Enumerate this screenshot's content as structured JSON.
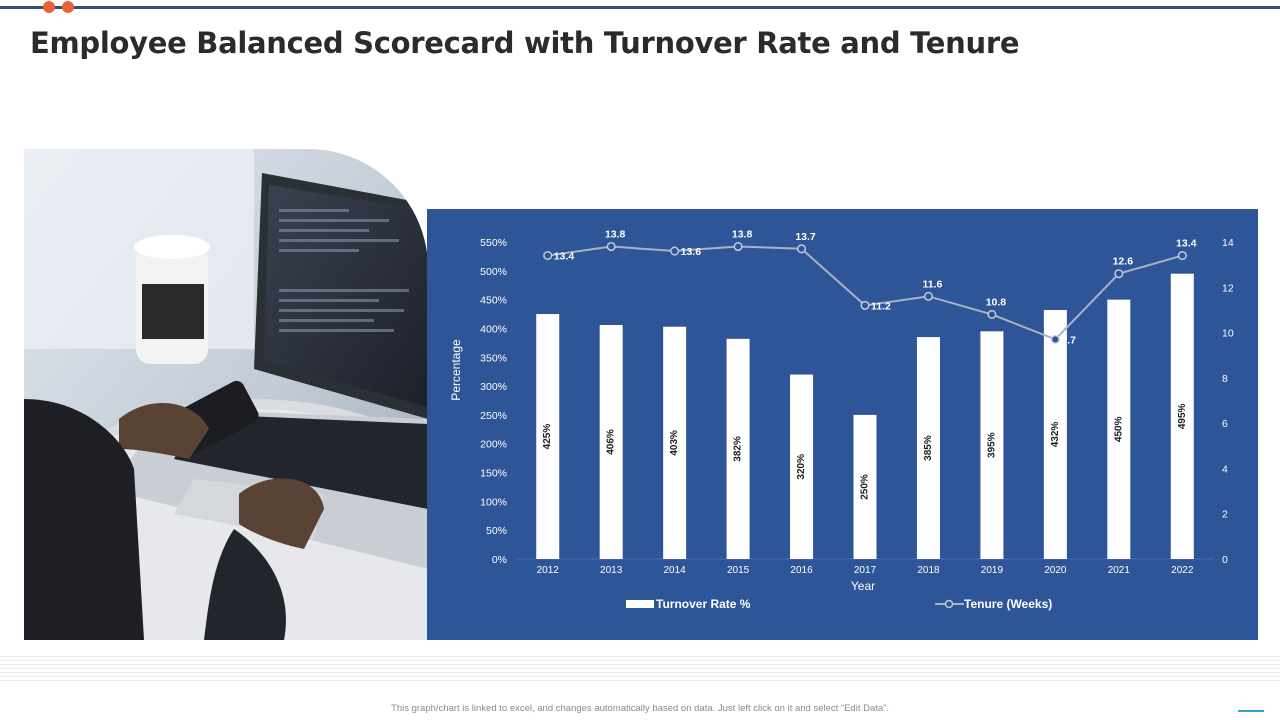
{
  "title": "Employee Balanced Scorecard with Turnover Rate and Tenure",
  "footer_note": "This graph/chart is linked to excel, and changes automatically based on data. Just left click on it and select “Edit Data”.",
  "colors": {
    "accent": "#e8623a",
    "header_line": "#2f4f7f",
    "chart_bg": "#2e5597",
    "bar": "#ffffff",
    "line": "#a9b2c3",
    "footer_dash": "#2aa5d8"
  },
  "chart_data": {
    "type": "bar",
    "categories": [
      "2012",
      "2013",
      "2014",
      "2015",
      "2016",
      "2017",
      "2018",
      "2019",
      "2020",
      "2021",
      "2022"
    ],
    "series": [
      {
        "name": "Turnover Rate %",
        "type": "bar",
        "axis": "left",
        "values": [
          425,
          406,
          403,
          382,
          320,
          250,
          385,
          395,
          432,
          450,
          495
        ],
        "labels": [
          "425%",
          "406%",
          "403%",
          "382%",
          "320%",
          "250%",
          "385%",
          "395%",
          "432%",
          "450%",
          "495%"
        ]
      },
      {
        "name": "Tenure (Weeks)",
        "type": "line",
        "axis": "right",
        "values": [
          13.4,
          13.8,
          13.6,
          13.8,
          13.7,
          11.2,
          11.6,
          10.8,
          9.7,
          12.6,
          13.4
        ],
        "labels": [
          "13.4",
          "13.8",
          "13.6",
          "13.8",
          "13.7",
          "11.2",
          "11.6",
          "10.8",
          "9.7",
          "12.6",
          "13.4"
        ]
      }
    ],
    "xlabel": "Year",
    "ylabel": "Percentage",
    "ylim": [
      0,
      550
    ],
    "y2lim": [
      0,
      14
    ],
    "yticks": [
      "0%",
      "50%",
      "100%",
      "150%",
      "200%",
      "250%",
      "300%",
      "350%",
      "400%",
      "450%",
      "500%",
      "550%"
    ],
    "y2ticks": [
      "0",
      "2",
      "4",
      "6",
      "8",
      "10",
      "12",
      "14"
    ],
    "grid": false,
    "legend_position": "bottom"
  }
}
